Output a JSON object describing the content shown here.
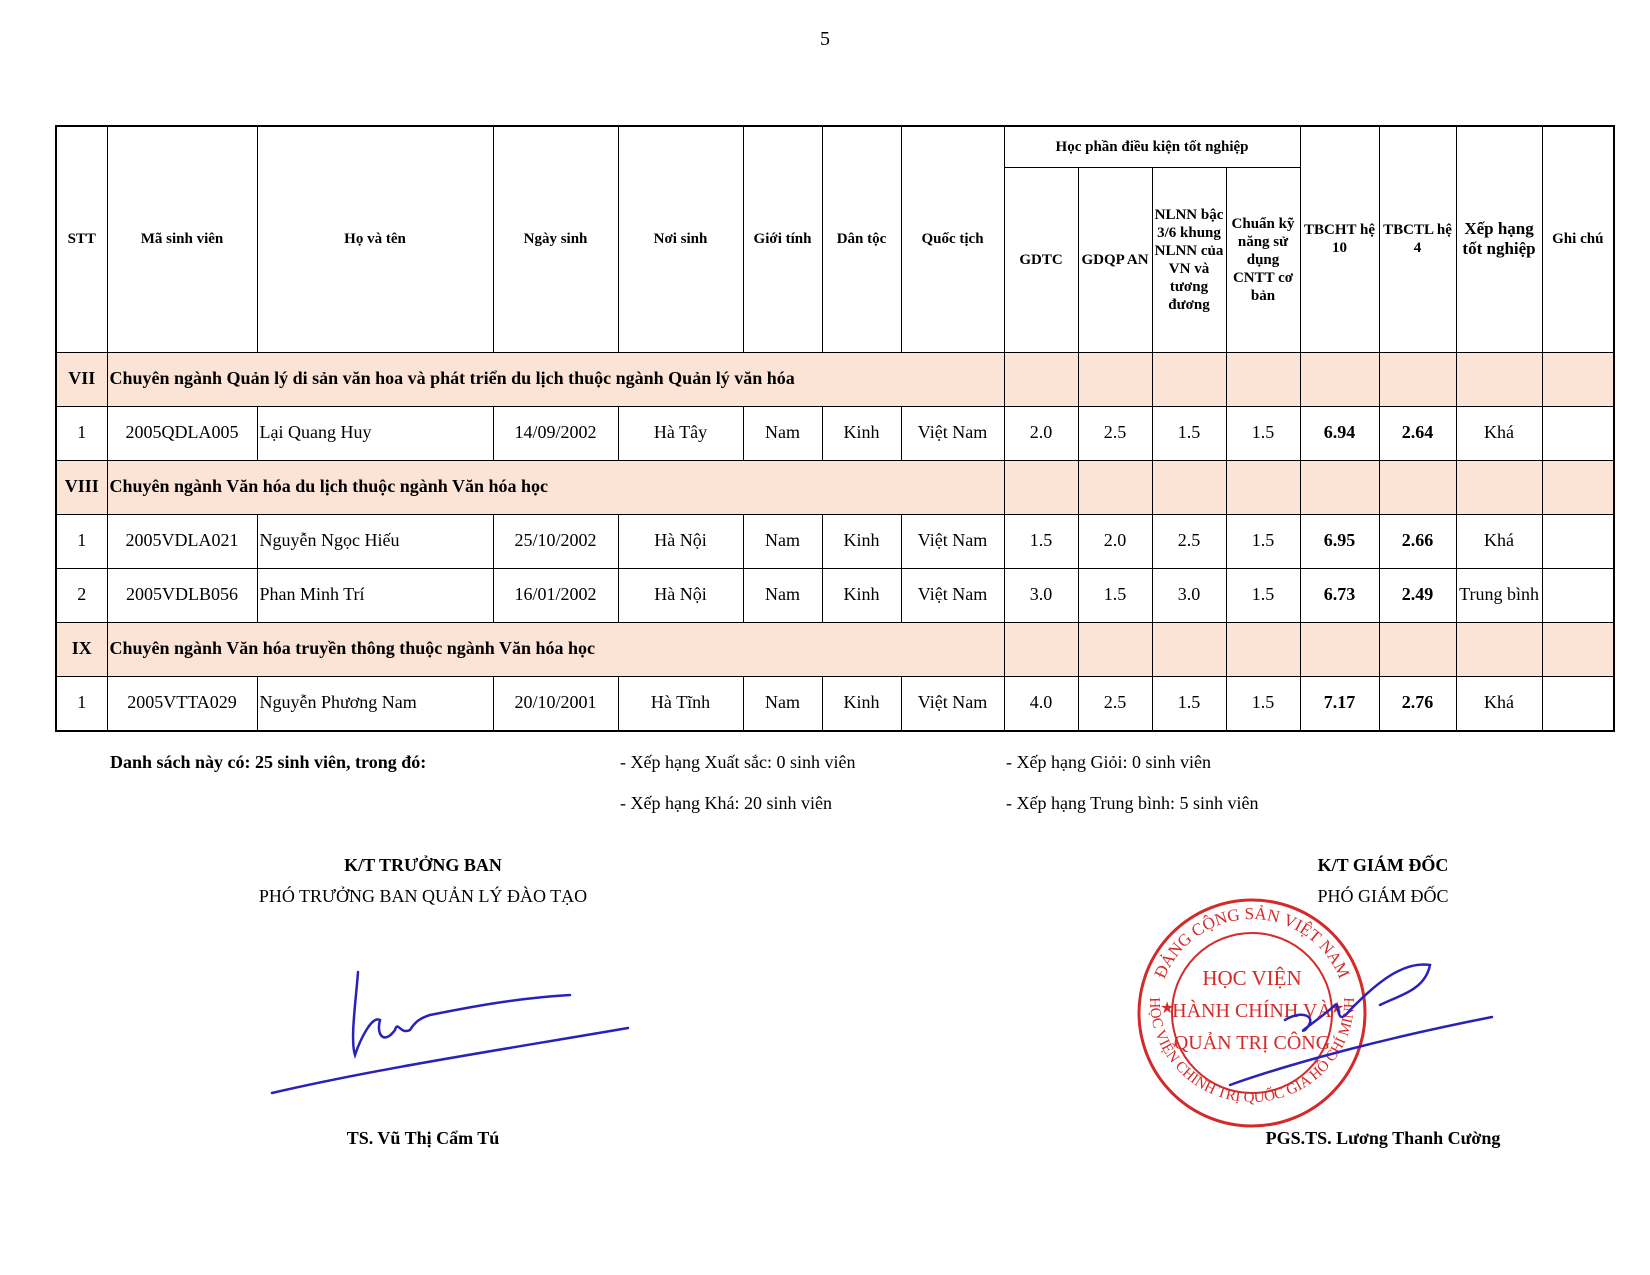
{
  "page_number": "5",
  "table": {
    "headers": {
      "stt": "STT",
      "ma_sv": "Mã sinh viên",
      "ho_ten": "Họ và tên",
      "ngay_sinh": "Ngày sinh",
      "noi_sinh": "Nơi sinh",
      "gioi_tinh": "Giới tính",
      "dan_toc": "Dân tộc",
      "quoc_tich": "Quốc tịch",
      "group": "Học phần điều kiện tốt nghiệp",
      "gdtc": "GDTC",
      "gdqp": "GDQP AN",
      "nlnn": "NLNN bậc 3/6 khung NLNN của VN và tương đương",
      "cntt": "Chuẩn kỹ năng sử dụng CNTT cơ bản",
      "tbcht": "TBCHT hệ 10",
      "tbctl": "TBCTL hệ 4",
      "xep_hang": "Xếp hạng tốt nghiệp",
      "ghi_chu": "Ghi chú"
    },
    "sections": [
      {
        "code": "VII",
        "title": "Chuyên ngành Quản lý di sản văn hoa và phát triển du lịch thuộc ngành Quản lý văn hóa",
        "rows": [
          [
            "1",
            "2005QDLA005",
            "Lại Quang Huy",
            "14/09/2002",
            "Hà Tây",
            "Nam",
            "Kinh",
            "Việt Nam",
            "2.0",
            "2.5",
            "1.5",
            "1.5",
            "6.94",
            "2.64",
            "Khá",
            ""
          ]
        ]
      },
      {
        "code": "VIII",
        "title": "Chuyên ngành Văn hóa du lịch thuộc ngành Văn hóa học",
        "rows": [
          [
            "1",
            "2005VDLA021",
            "Nguyễn Ngọc Hiếu",
            "25/10/2002",
            "Hà Nội",
            "Nam",
            "Kinh",
            "Việt Nam",
            "1.5",
            "2.0",
            "2.5",
            "1.5",
            "6.95",
            "2.66",
            "Khá",
            ""
          ],
          [
            "2",
            "2005VDLB056",
            "Phan Minh Trí",
            "16/01/2002",
            "Hà Nội",
            "Nam",
            "Kinh",
            "Việt Nam",
            "3.0",
            "1.5",
            "3.0",
            "1.5",
            "6.73",
            "2.49",
            "Trung bình",
            ""
          ]
        ]
      },
      {
        "code": "IX",
        "title": "Chuyên ngành Văn hóa truyền thông thuộc ngành Văn hóa học",
        "rows": [
          [
            "1",
            "2005VTTA029",
            "Nguyễn Phương Nam",
            "20/10/2001",
            "Hà Tĩnh",
            "Nam",
            "Kinh",
            "Việt Nam",
            "4.0",
            "2.5",
            "1.5",
            "1.5",
            "7.17",
            "2.76",
            "Khá",
            ""
          ]
        ]
      }
    ]
  },
  "summary": {
    "total": "Danh sách này có: 25 sinh viên, trong đó:",
    "xuat_sac": "- Xếp hạng Xuất sắc: 0 sinh viên",
    "gioi": "- Xếp hạng Giỏi: 0 sinh viên",
    "kha": "- Xếp hạng Khá: 20 sinh viên",
    "trung_binh": "- Xếp hạng Trung bình: 5 sinh viên"
  },
  "signatures": {
    "left": {
      "title": "K/T TRƯỞNG BAN",
      "subtitle": "PHÓ TRƯỞNG BAN QUẢN LÝ ĐÀO TẠO",
      "name": "TS. Vũ Thị Cẩm Tú"
    },
    "right": {
      "title": "K/T GIÁM ĐỐC",
      "subtitle": "PHÓ GIÁM ĐỐC",
      "name": "PGS.TS. Lương Thanh Cường"
    }
  },
  "stamp": {
    "top_arc": "ĐẢNG CỘNG SẢN VIỆT NAM",
    "bottom_arc": "HỌC VIỆN CHÍNH TRỊ QUỐC GIA HỒ CHÍ MINH",
    "line1": "HỌC VIỆN",
    "line2": "HÀNH CHÍNH VÀ",
    "line3": "QUẢN TRỊ CÔNG",
    "color": "#d42a2a"
  },
  "colors": {
    "section_bg": "#fbe4d5",
    "signature_ink": "#2a22b8"
  }
}
